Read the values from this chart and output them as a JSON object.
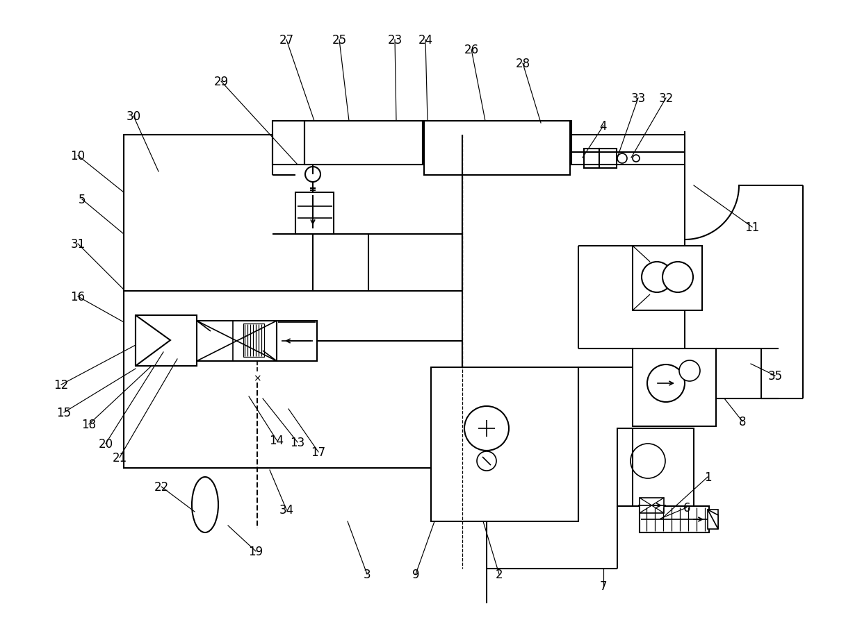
{
  "bg": "#ffffff",
  "lc": "#000000",
  "lw": 1.5,
  "fs": 12,
  "annotations": [
    [
      "1",
      1018,
      688,
      952,
      748
    ],
    [
      "2",
      718,
      828,
      695,
      752
    ],
    [
      "3",
      528,
      828,
      500,
      752
    ],
    [
      "4",
      868,
      182,
      838,
      228
    ],
    [
      "5",
      118,
      288,
      178,
      338
    ],
    [
      "6",
      988,
      732,
      950,
      748
    ],
    [
      "7",
      868,
      845,
      868,
      820
    ],
    [
      "8",
      1068,
      608,
      1042,
      575
    ],
    [
      "9",
      598,
      828,
      625,
      752
    ],
    [
      "10",
      112,
      225,
      178,
      278
    ],
    [
      "11",
      1082,
      328,
      998,
      268
    ],
    [
      "12",
      88,
      555,
      195,
      498
    ],
    [
      "13",
      428,
      638,
      378,
      575
    ],
    [
      "14",
      398,
      635,
      358,
      572
    ],
    [
      "15",
      92,
      595,
      195,
      532
    ],
    [
      "16",
      112,
      428,
      178,
      465
    ],
    [
      "17",
      458,
      652,
      415,
      590
    ],
    [
      "18",
      128,
      612,
      218,
      528
    ],
    [
      "19",
      368,
      795,
      328,
      758
    ],
    [
      "20",
      152,
      640,
      235,
      508
    ],
    [
      "21",
      172,
      660,
      255,
      518
    ],
    [
      "22",
      232,
      702,
      280,
      738
    ],
    [
      "23",
      568,
      58,
      570,
      175
    ],
    [
      "24",
      612,
      58,
      615,
      175
    ],
    [
      "25",
      488,
      58,
      502,
      175
    ],
    [
      "26",
      678,
      72,
      698,
      175
    ],
    [
      "27",
      412,
      58,
      452,
      175
    ],
    [
      "28",
      752,
      92,
      778,
      178
    ],
    [
      "29",
      318,
      118,
      428,
      238
    ],
    [
      "30",
      192,
      168,
      228,
      248
    ],
    [
      "31",
      112,
      352,
      178,
      418
    ],
    [
      "32",
      958,
      142,
      908,
      228
    ],
    [
      "33",
      918,
      142,
      888,
      228
    ],
    [
      "34",
      412,
      735,
      388,
      678
    ],
    [
      "35",
      1115,
      542,
      1080,
      525
    ]
  ]
}
